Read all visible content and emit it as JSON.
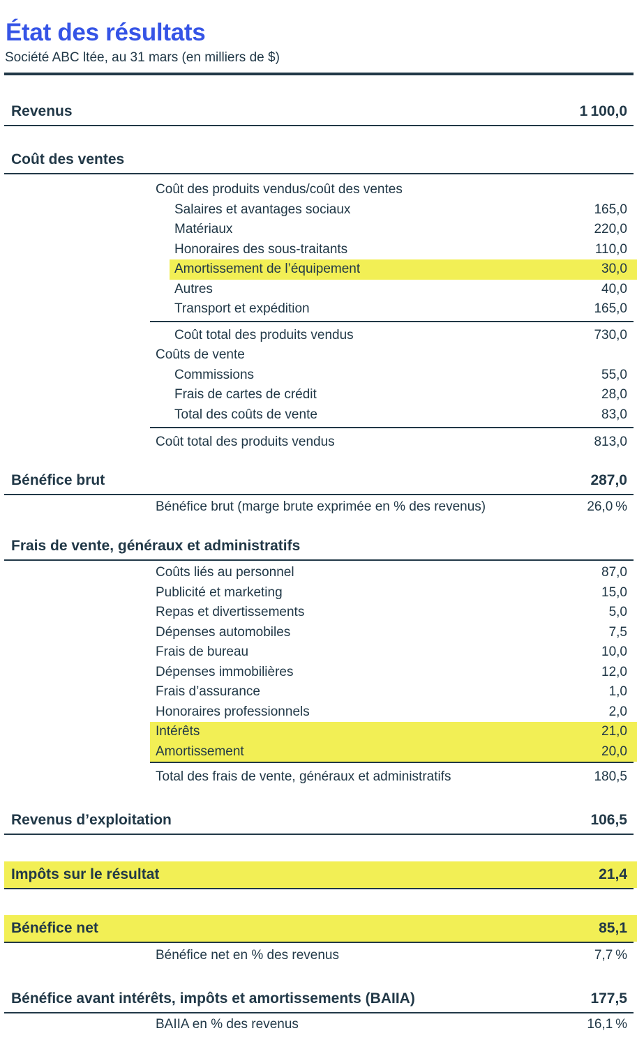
{
  "document": {
    "title": "État des résultats",
    "subtitle": "Société ABC ltée, au 31 mars (en milliers de $)"
  },
  "colors": {
    "accent_blue": "#3554e6",
    "highlight_yellow": "#f2ef55",
    "ink": "#213847"
  },
  "statement": {
    "revenue": {
      "label": "Revenus",
      "value": "1 100,0"
    },
    "cost_of_sales": {
      "heading": "Coût des ventes",
      "rows": [
        {
          "label": "Coût des produits vendus/coût des ventes",
          "value": ""
        },
        {
          "label": "Salaires et avantages sociaux",
          "value": "165,0"
        },
        {
          "label": "Matériaux",
          "value": "220,0"
        },
        {
          "label": "Honoraires des sous-traitants",
          "value": "110,0"
        },
        {
          "label": "Amortissement de l’équipement",
          "value": "30,0",
          "highlighted": true
        },
        {
          "label": "Autres",
          "value": "40,0"
        },
        {
          "label": "Transport et expédition",
          "value": "165,0"
        },
        {
          "label": "Coût total des produits vendus",
          "value": "730,0"
        },
        {
          "label": "Coûts de vente",
          "value": ""
        },
        {
          "label": "Commissions",
          "value": "55,0"
        },
        {
          "label": "Frais de cartes de crédit",
          "value": "28,0"
        },
        {
          "label": "Total des coûts de vente",
          "value": "83,0"
        },
        {
          "label": "Coût total des produits vendus",
          "value": "813,0"
        }
      ]
    },
    "gross_profit": {
      "label": "Bénéfice brut",
      "value": "287,0"
    },
    "gross_margin": {
      "label": "Bénéfice brut (marge brute exprimée en % des revenus)",
      "value": "26,0 %"
    },
    "sga": {
      "heading": "Frais de vente, généraux et administratifs",
      "rows": [
        {
          "label": "Coûts liés au personnel",
          "value": "87,0"
        },
        {
          "label": "Publicité et marketing",
          "value": "15,0"
        },
        {
          "label": "Repas et divertissements",
          "value": "5,0"
        },
        {
          "label": "Dépenses automobiles",
          "value": "7,5"
        },
        {
          "label": "Frais de bureau",
          "value": "10,0"
        },
        {
          "label": "Dépenses immobilières",
          "value": "12,0"
        },
        {
          "label": "Frais d’assurance",
          "value": "1,0"
        },
        {
          "label": "Honoraires professionnels",
          "value": "2,0"
        },
        {
          "label": "Intérêts",
          "value": "21,0",
          "highlighted": true
        },
        {
          "label": "Amortissement",
          "value": "20,0",
          "highlighted": true
        },
        {
          "label": "Total des frais de vente, généraux et administratifs",
          "value": "180,5"
        }
      ]
    },
    "operating_income": {
      "label": "Revenus d’exploitation",
      "value": "106,5"
    },
    "income_tax": {
      "label": "Impôts sur le résultat",
      "value": "21,4",
      "highlighted": true
    },
    "net_income": {
      "label": "Bénéfice net",
      "value": "85,1",
      "highlighted": true
    },
    "net_margin": {
      "label": "Bénéfice net en % des revenus",
      "value": "7,7 %"
    },
    "ebitda": {
      "label": "Bénéfice avant intérêts, impôts et amortissements (BAIIA)",
      "value": "177,5"
    },
    "ebitda_margin": {
      "label": "BAIIA en % des revenus",
      "value": "16,1 %"
    }
  }
}
